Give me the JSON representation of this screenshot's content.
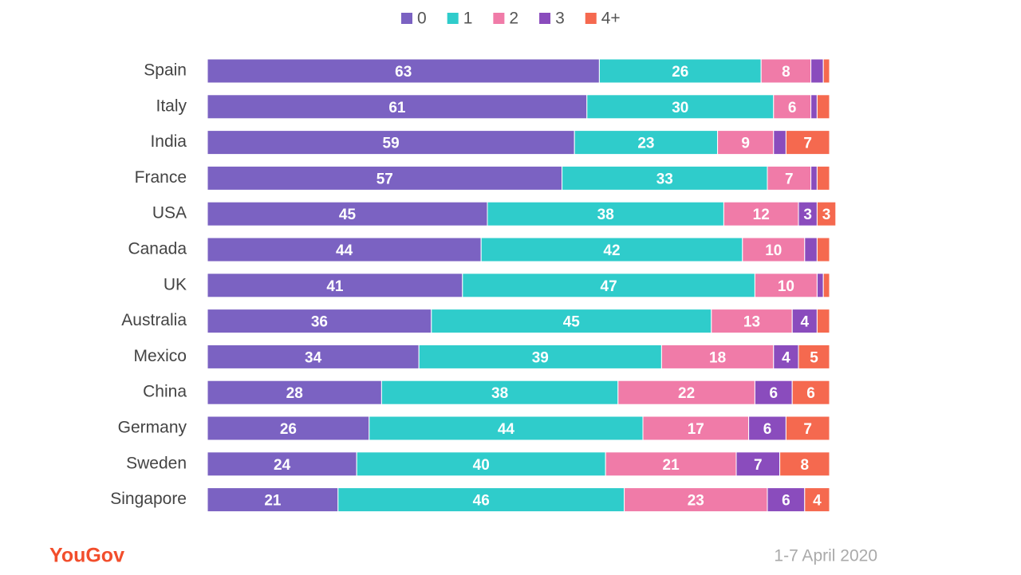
{
  "chart_data": {
    "type": "stacked_bar_horizontal",
    "categories": [
      "Spain",
      "Italy",
      "India",
      "France",
      "USA",
      "Canada",
      "UK",
      "Australia",
      "Mexico",
      "China",
      "Germany",
      "Sweden",
      "Singapore"
    ],
    "series": [
      {
        "name": "0",
        "color": "#7b62c2",
        "values": [
          63,
          61,
          59,
          57,
          45,
          44,
          41,
          36,
          34,
          28,
          26,
          24,
          21
        ]
      },
      {
        "name": "1",
        "color": "#2fcccb",
        "values": [
          26,
          30,
          23,
          33,
          38,
          42,
          47,
          45,
          39,
          38,
          44,
          40,
          46
        ]
      },
      {
        "name": "2",
        "color": "#f07ba8",
        "values": [
          8,
          6,
          9,
          7,
          12,
          10,
          10,
          13,
          18,
          22,
          17,
          21,
          23
        ]
      },
      {
        "name": "3",
        "color": "#8a4cbd",
        "values": [
          2,
          1,
          2,
          1,
          3,
          2,
          1,
          4,
          4,
          6,
          6,
          7,
          6
        ]
      },
      {
        "name": "4+",
        "color": "#f5694f",
        "values": [
          1,
          2,
          7,
          2,
          3,
          2,
          1,
          2,
          5,
          6,
          7,
          8,
          4
        ]
      }
    ],
    "xlim": [
      0,
      100
    ],
    "legend": "top",
    "logo": "YouGov",
    "note": "1-7 April 2020"
  }
}
